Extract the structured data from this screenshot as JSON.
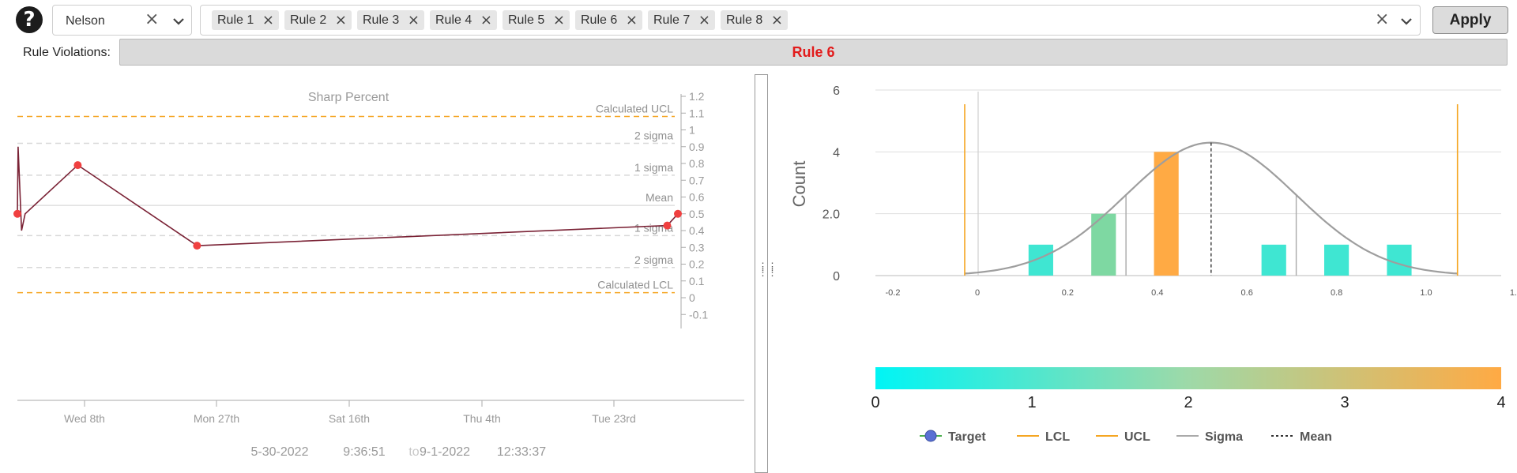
{
  "header": {
    "help_glyph": "?",
    "method_select": {
      "value": "Nelson"
    },
    "rule_chips": [
      "Rule 1",
      "Rule 2",
      "Rule 3",
      "Rule 4",
      "Rule 5",
      "Rule 6",
      "Rule 7",
      "Rule 8"
    ],
    "apply_label": "Apply"
  },
  "violations": {
    "label": "Rule Violations:",
    "value": "Rule 6",
    "value_color": "#e21b1b"
  },
  "chart_data": [
    {
      "type": "line",
      "title": "Sharp Percent",
      "y_ticks": [
        1.2,
        1.1,
        1,
        0.9,
        0.8,
        0.7,
        0.6,
        0.5,
        0.4,
        0.3,
        0.2,
        0.1,
        0,
        -0.1
      ],
      "ylim": [
        -0.15,
        1.25
      ],
      "x_ticks": [
        "Wed 8th",
        "Mon 27th",
        "Sat 16th",
        "Thu 4th",
        "Tue 23rd"
      ],
      "reference_lines": [
        {
          "label": "Calculated UCL",
          "value": 1.08,
          "style": "dashed",
          "color": "#f5a623"
        },
        {
          "label": "2 sigma",
          "value": 0.92,
          "style": "dashed",
          "color": "#d8d8d8"
        },
        {
          "label": "1 sigma",
          "value": 0.73,
          "style": "dashed",
          "color": "#d8d8d8"
        },
        {
          "label": "Mean",
          "value": 0.55,
          "style": "solid",
          "color": "#d8d8d8"
        },
        {
          "label": "1 sigma",
          "value": 0.37,
          "style": "dashed",
          "color": "#d8d8d8"
        },
        {
          "label": "2 sigma",
          "value": 0.18,
          "style": "dashed",
          "color": "#d8d8d8"
        },
        {
          "label": "Calculated LCL",
          "value": 0.03,
          "style": "dashed",
          "color": "#f5a623"
        }
      ],
      "series": [
        {
          "color": "#7a2235",
          "points": [
            {
              "date": "2022-05-30 09:36:51",
              "y": 0.5,
              "violation": true
            },
            {
              "date": "2022-05-30 12:00",
              "y": 0.9,
              "violation": false
            },
            {
              "date": "2022-05-31",
              "y": 0.4,
              "violation": false
            },
            {
              "date": "2022-05-31 12:00",
              "y": 0.5,
              "violation": false
            },
            {
              "date": "2022-06-08",
              "y": 0.79,
              "violation": true
            },
            {
              "date": "2022-06-25",
              "y": 0.31,
              "violation": true
            },
            {
              "date": "2022-08-31",
              "y": 0.43,
              "violation": true
            },
            {
              "date": "2022-09-01 12:33:37",
              "y": 0.5,
              "violation": true
            }
          ]
        }
      ],
      "point_color": "#f04040",
      "date_range": {
        "start_date": "5-30-2022",
        "start_time": "9:36:51",
        "separator": "to",
        "end_date": "9-1-2022",
        "end_time": "12:33:37"
      }
    },
    {
      "type": "histogram",
      "ylabel": "Count",
      "y_ticks": [
        "6",
        "4",
        "2.0",
        "0"
      ],
      "ylim": [
        0,
        6
      ],
      "x_ticks": [
        "-0.2",
        "0",
        "0.2",
        "0.4",
        "0.6",
        "0.8",
        "1.0",
        "1."
      ],
      "xlim": [
        -0.25,
        1.2
      ],
      "bins": [
        {
          "center": 0.14,
          "count": 1,
          "color": "#3fe6d2"
        },
        {
          "center": 0.28,
          "count": 2,
          "color": "#7ed8a2"
        },
        {
          "center": 0.42,
          "count": 4,
          "color": "#ffaa44"
        },
        {
          "center": 0.66,
          "count": 1,
          "color": "#3fe6d2"
        },
        {
          "center": 0.8,
          "count": 1,
          "color": "#3fe6d2"
        },
        {
          "center": 0.94,
          "count": 1,
          "color": "#3fe6d2"
        }
      ],
      "bin_width": 0.055,
      "target": 0,
      "lcl": -0.03,
      "ucl": 1.07,
      "mean": 0.52,
      "sigma_lines": [
        0.33,
        0.71
      ],
      "normal_curve": {
        "mean": 0.52,
        "sd": 0.19,
        "peak": 4.3
      },
      "colorbar": {
        "ticks": [
          "0",
          "1",
          "2",
          "3",
          "4"
        ],
        "start_color": "#00f5f5",
        "end_color": "#ffaa44"
      },
      "legend": [
        {
          "label": "Target",
          "type": "target",
          "color": "#5a70d4"
        },
        {
          "label": "LCL",
          "type": "line",
          "color": "#f5a623"
        },
        {
          "label": "UCL",
          "type": "line",
          "color": "#f5a623"
        },
        {
          "label": "Sigma",
          "type": "line",
          "color": "#aaaaaa"
        },
        {
          "label": "Mean",
          "type": "dashed",
          "color": "#333333"
        }
      ],
      "legend_position": "bottom"
    }
  ]
}
